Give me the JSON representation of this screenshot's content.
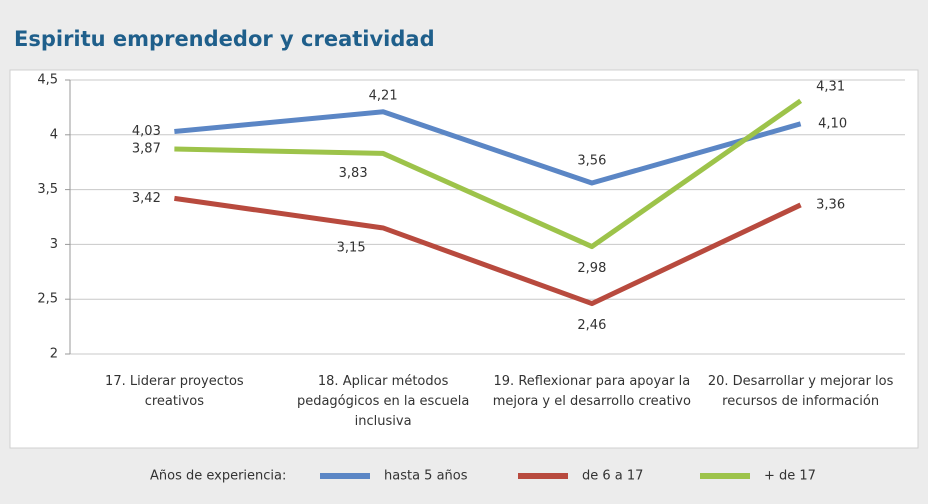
{
  "chart_data": {
    "type": "line",
    "title": "Espiritu emprendedor y creatividad",
    "categories": [
      "17. Liderar proyectos creativos",
      "18. Aplicar métodos pedagógicos en la escuela inclusiva",
      "19. Reflexionar para apoyar la mejora y el desarrollo creativo",
      "20. Desarrollar y mejorar los recursos de información"
    ],
    "series": [
      {
        "name": "hasta 5 años",
        "color": "#5b86c5",
        "values": [
          4.03,
          4.21,
          3.56,
          4.1
        ],
        "value_labels": [
          "4,03",
          "4,21",
          "3,56",
          "4,10"
        ]
      },
      {
        "name": "de 6 a 17",
        "color": "#b84a3e",
        "values": [
          3.42,
          3.15,
          2.46,
          3.36
        ],
        "value_labels": [
          "3,42",
          "3,15",
          "2,46",
          "3,36"
        ]
      },
      {
        "name": "+ de 17",
        "color": "#9dc34a",
        "values": [
          3.87,
          3.83,
          2.98,
          4.31
        ],
        "value_labels": [
          "3,87",
          "3,83",
          "2,98",
          "4,31"
        ]
      }
    ],
    "ylim": [
      2,
      4.5
    ],
    "yticks": [
      2,
      {
        "value": 2.5,
        "label": "2,5"
      },
      3,
      {
        "value": 3.5,
        "label": "3,5"
      },
      4,
      {
        "value": 4.5,
        "label": "4,5"
      }
    ],
    "grid": true,
    "legend_title": "Años de experiencia:",
    "legend": "bottom"
  }
}
